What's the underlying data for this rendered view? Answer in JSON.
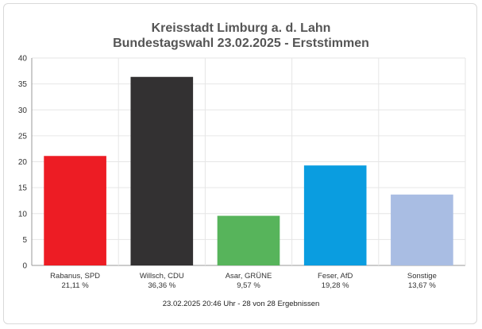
{
  "chart_data": {
    "type": "bar",
    "title": "Kreisstadt Limburg a. d. Lahn",
    "subtitle": "Bundestagswahl 23.02.2025  - Erststimmen",
    "ylim": [
      0,
      40
    ],
    "yticks": [
      0,
      5,
      10,
      15,
      20,
      25,
      30,
      35,
      40
    ],
    "grid": true,
    "categories": [
      "Rabanus, SPD",
      "Willsch, CDU",
      "Asar, GRÜNE",
      "Feser, AfD",
      "Sonstige"
    ],
    "percent_labels": [
      "21,11 %",
      "36,36 %",
      "9,57 %",
      "19,28 %",
      "13,67 %"
    ],
    "values": [
      21.11,
      36.36,
      9.57,
      19.28,
      13.67
    ],
    "colors": [
      "#ed1c24",
      "#333132",
      "#57b45b",
      "#0a9de0",
      "#a9bde3"
    ],
    "footer": "23.02.2025 20:46 Uhr - 28 von 28 Ergebnissen"
  }
}
